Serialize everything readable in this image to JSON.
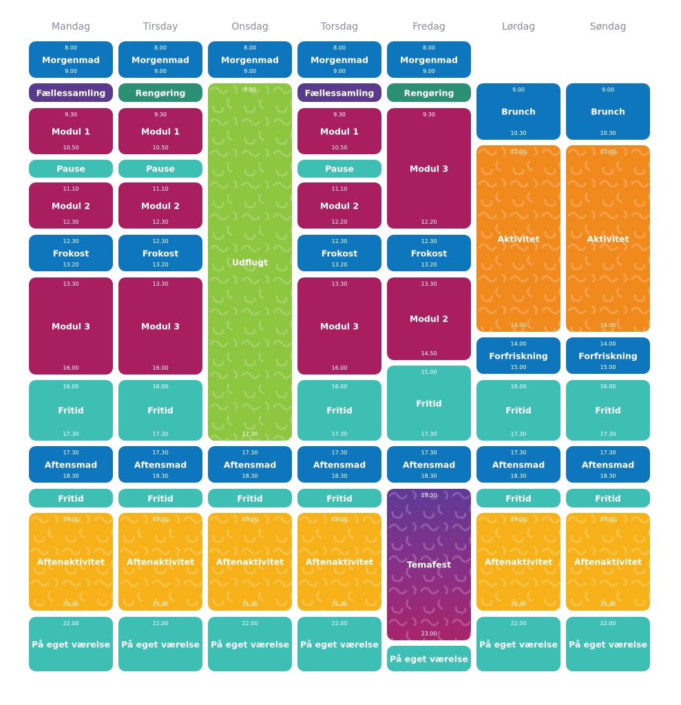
{
  "days": [
    "Mandag",
    "Tirsday",
    "Onsdag",
    "Torsdag",
    "Fredag",
    "Lørdag",
    "Søndag"
  ],
  "colors": {
    "blue": "#0e76bd",
    "purple": "#5a3a8c",
    "green": "#2b8f74",
    "magenta": "#a91e5f",
    "teal": "#3ebfb3",
    "lime": "#8dc63f",
    "orange": "#f08a1d",
    "yellow": "#f7b219"
  },
  "schedule": {
    "mandag": {
      "b0": {
        "label": "Morgenmad",
        "start": "8.00",
        "end": "9.00"
      },
      "b1": {
        "label": "Fællessamling"
      },
      "b2": {
        "label": "Modul 1",
        "start": "9.30",
        "end": "10.50"
      },
      "b3": {
        "label": "Pause"
      },
      "b4": {
        "label": "Modul 2",
        "start": "11.10",
        "end": "12.30"
      },
      "b5": {
        "label": "Frokost",
        "start": "12.30",
        "end": "13.20"
      },
      "b6": {
        "label": "Modul 3",
        "start": "13.30",
        "end": "16.00"
      },
      "b7": {
        "label": "Fritid",
        "start": "16.00",
        "end": "17.30"
      },
      "b8": {
        "label": "Aftensmad",
        "start": "17.30",
        "end": "18.30"
      },
      "b9": {
        "label": "Fritid"
      },
      "b10": {
        "label": "Aftenaktivitet",
        "start": "19.00",
        "end": "21.30"
      },
      "b11": {
        "label": "På eget værelse",
        "start": "22.00"
      }
    },
    "tirsday": {
      "b0": {
        "label": "Morgenmad",
        "start": "8.00",
        "end": "9.00"
      },
      "b1": {
        "label": "Rengøring"
      },
      "b2": {
        "label": "Modul 1",
        "start": "9.30",
        "end": "10.50"
      },
      "b3": {
        "label": "Pause"
      },
      "b4": {
        "label": "Modul 2",
        "start": "11.10",
        "end": "12.30"
      },
      "b5": {
        "label": "Frokost",
        "start": "12.30",
        "end": "13.20"
      },
      "b6": {
        "label": "Modul 3",
        "start": "13.30",
        "end": "16.00"
      },
      "b7": {
        "label": "Fritid",
        "start": "16.00",
        "end": "17.30"
      },
      "b8": {
        "label": "Aftensmad",
        "start": "17.30",
        "end": "18.30"
      },
      "b9": {
        "label": "Fritid"
      },
      "b10": {
        "label": "Aftenaktivitet",
        "start": "19.00",
        "end": "21.30"
      },
      "b11": {
        "label": "På eget værelse",
        "start": "22.00"
      }
    },
    "onsdag": {
      "b0": {
        "label": "Morgenmad",
        "start": "8.00",
        "end": "9.00"
      },
      "b1": {
        "label": "Udflugt",
        "start": "9.00",
        "end": "17.30"
      },
      "b2": {
        "label": "Aftensmad",
        "start": "17.30",
        "end": "18.30"
      },
      "b3": {
        "label": "Fritid"
      },
      "b4": {
        "label": "Aftenaktivitet",
        "start": "19.00",
        "end": "21.30"
      },
      "b5": {
        "label": "På eget værelse",
        "start": "22.00"
      }
    },
    "torsdag": {
      "b0": {
        "label": "Morgenmad",
        "start": "8.00",
        "end": "9.00"
      },
      "b1": {
        "label": "Fællessamling"
      },
      "b2": {
        "label": "Modul 1",
        "start": "9.30",
        "end": "10.50"
      },
      "b3": {
        "label": "Pause"
      },
      "b4": {
        "label": "Modul 2",
        "start": "11.10",
        "end": "12.20"
      },
      "b5": {
        "label": "Frokost",
        "start": "12.30",
        "end": "13.20"
      },
      "b6": {
        "label": "Modul 3",
        "start": "13.30",
        "end": "16.00"
      },
      "b7": {
        "label": "Fritid",
        "start": "16.00",
        "end": "17.30"
      },
      "b8": {
        "label": "Aftensmad",
        "start": "17.30",
        "end": "18.30"
      },
      "b9": {
        "label": "Fritid"
      },
      "b10": {
        "label": "Aftenaktivitet",
        "start": "19.00",
        "end": "21.30"
      },
      "b11": {
        "label": "På eget værelse",
        "start": "22.00"
      }
    },
    "fredag": {
      "b0": {
        "label": "Morgenmad",
        "start": "8.00",
        "end": "9.00"
      },
      "b1": {
        "label": "Rengøring"
      },
      "b2": {
        "label": "Modul 3",
        "start": "9.30",
        "end": "12.20"
      },
      "b3": {
        "label": "Frokost",
        "start": "12.30",
        "end": "13.20"
      },
      "b4": {
        "label": "Modul 2",
        "start": "13.30",
        "end": "14.50"
      },
      "b5": {
        "label": "Fritid",
        "start": "15.00",
        "end": "17.30"
      },
      "b6": {
        "label": "Aftensmad",
        "start": "17.30",
        "end": "18.30"
      },
      "b7": {
        "label": "Temafest",
        "start": "18.30",
        "end": "23.00"
      },
      "b8": {
        "label": "På eget værelse"
      }
    },
    "lordag": {
      "b0": {
        "label": "Brunch",
        "start": "9.00",
        "end": "10.30"
      },
      "b1": {
        "label": "Aktivitet",
        "start": "11.00",
        "end": "14.00"
      },
      "b2": {
        "label": "Forfriskning",
        "start": "14.00",
        "end": "15.00"
      },
      "b3": {
        "label": "Fritid",
        "start": "16.00",
        "end": "17.30"
      },
      "b4": {
        "label": "Aftensmad",
        "start": "17.30",
        "end": "18.30"
      },
      "b5": {
        "label": "Fritid"
      },
      "b6": {
        "label": "Aftenaktivitet",
        "start": "19.00",
        "end": "21.30"
      },
      "b7": {
        "label": "På eget værelse",
        "start": "22.00"
      }
    },
    "sondag": {
      "b0": {
        "label": "Brunch",
        "start": "9.00",
        "end": "10.30"
      },
      "b1": {
        "label": "Aktivitet",
        "start": "11.00",
        "end": "14.00"
      },
      "b2": {
        "label": "Forfriskning",
        "start": "14.00",
        "end": "15.00"
      },
      "b3": {
        "label": "Fritid",
        "start": "16.00",
        "end": "17.30"
      },
      "b4": {
        "label": "Aftensmad",
        "start": "17.30",
        "end": "18.30"
      },
      "b5": {
        "label": "Fritid"
      },
      "b6": {
        "label": "Aftenaktivitet",
        "start": "19.00",
        "end": "21.30"
      },
      "b7": {
        "label": "På eget værelse",
        "start": "22.00"
      }
    }
  }
}
